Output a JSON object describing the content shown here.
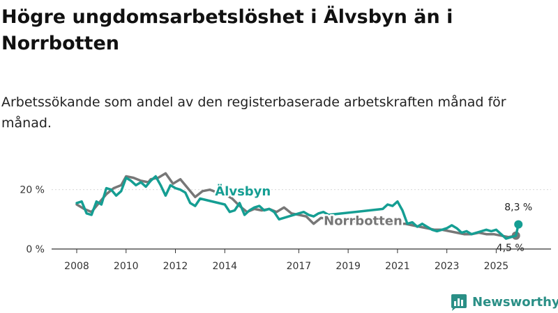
{
  "title": "Högre ungdomsarbetslöshet i Älvsbyn än i Norrbotten",
  "subtitle": "Arbetssökande som andel av den registerbaserade arbetskraften månad för månad.",
  "brand": {
    "name": "Newsworthy"
  },
  "colors": {
    "alvsbyn": "#159e93",
    "norrbotten": "#777777",
    "axis": "#333333"
  },
  "chart_data": {
    "type": "line",
    "unit": "%",
    "ylim": [
      0,
      30
    ],
    "xlim": [
      2008.0,
      2026.6
    ],
    "yticks": [
      {
        "value": 0,
        "label": "0 %"
      },
      {
        "value": 20,
        "label": "20 %"
      }
    ],
    "xticks": [
      {
        "value": 2008,
        "label": "2008"
      },
      {
        "value": 2010,
        "label": "2010"
      },
      {
        "value": 2012,
        "label": "2012"
      },
      {
        "value": 2014,
        "label": "2014"
      },
      {
        "value": 2017,
        "label": "2017"
      },
      {
        "value": 2019,
        "label": "2019"
      },
      {
        "value": 2021,
        "label": "2021"
      },
      {
        "value": 2023,
        "label": "2023"
      },
      {
        "value": 2025,
        "label": "2025"
      }
    ],
    "series": [
      {
        "name": "Norrbotten",
        "label": "Norrbotten",
        "color": "#777777",
        "end_label": "4,5 %",
        "x": [
          2008.0,
          2008.3,
          2008.6,
          2008.9,
          2009.2,
          2009.5,
          2009.8,
          2010.0,
          2010.3,
          2010.6,
          2010.9,
          2011.0,
          2011.3,
          2011.6,
          2011.9,
          2012.2,
          2012.5,
          2012.8,
          2013.1,
          2013.4,
          2013.7,
          2014.0,
          2014.3,
          2014.6,
          2014.9,
          2015.2,
          2015.5,
          2015.8,
          2016.1,
          2016.4,
          2016.7,
          2017.0,
          2017.3,
          2017.6,
          2017.9,
          2018.2,
          2019.8,
          2020.1,
          2020.4,
          2020.7,
          2021.0,
          2021.3,
          2021.6,
          2021.9,
          2022.2,
          2022.5,
          2022.8,
          2023.1,
          2023.4,
          2023.7,
          2024.0,
          2024.3,
          2024.6,
          2024.9,
          2025.2,
          2025.5,
          2025.8
        ],
        "values": [
          15.0,
          13.5,
          12.5,
          15.5,
          18.5,
          20.5,
          21.5,
          24.5,
          24.0,
          23.0,
          22.5,
          23.5,
          24.0,
          25.5,
          22.0,
          23.5,
          20.5,
          17.5,
          19.5,
          20.0,
          19.0,
          18.5,
          17.0,
          14.5,
          12.5,
          13.5,
          13.0,
          13.5,
          12.5,
          14.0,
          12.0,
          11.5,
          11.0,
          8.5,
          10.5,
          10.0,
          9.0,
          9.5,
          9.0,
          9.5,
          8.5,
          8.5,
          8.0,
          7.5,
          7.0,
          6.5,
          6.5,
          6.0,
          5.5,
          5.0,
          5.0,
          5.5,
          5.0,
          5.0,
          4.5,
          4.0,
          4.5
        ]
      },
      {
        "name": "Älvsbyn",
        "label": "Älvsbyn",
        "color": "#159e93",
        "end_label": "8,3 %",
        "x": [
          2008.0,
          2008.2,
          2008.4,
          2008.6,
          2008.8,
          2009.0,
          2009.2,
          2009.4,
          2009.6,
          2009.8,
          2010.0,
          2010.2,
          2010.4,
          2010.6,
          2010.8,
          2011.0,
          2011.2,
          2011.4,
          2011.6,
          2011.8,
          2012.0,
          2012.2,
          2012.4,
          2012.6,
          2012.8,
          2013.0,
          2014.0,
          2014.2,
          2014.4,
          2014.6,
          2014.8,
          2015.0,
          2015.2,
          2015.4,
          2015.6,
          2015.8,
          2016.0,
          2016.2,
          2016.4,
          2016.6,
          2016.8,
          2017.0,
          2017.2,
          2017.4,
          2017.6,
          2017.8,
          2018.0,
          2018.2,
          2020.4,
          2020.6,
          2020.8,
          2021.0,
          2021.2,
          2021.4,
          2021.6,
          2021.8,
          2022.0,
          2022.2,
          2022.4,
          2022.6,
          2022.8,
          2023.0,
          2023.2,
          2023.4,
          2023.6,
          2023.8,
          2024.0,
          2024.2,
          2024.4,
          2024.6,
          2024.8,
          2025.0,
          2025.2,
          2025.4,
          2025.6,
          2025.8,
          2025.9
        ],
        "values": [
          15.5,
          16.0,
          12.0,
          11.5,
          16.0,
          15.0,
          20.5,
          20.0,
          18.0,
          19.5,
          24.0,
          23.0,
          21.5,
          22.5,
          21.0,
          23.0,
          24.5,
          21.5,
          18.0,
          21.5,
          20.5,
          20.0,
          19.0,
          15.5,
          14.5,
          17.0,
          15.0,
          12.5,
          13.0,
          15.5,
          11.5,
          13.0,
          14.0,
          14.5,
          13.0,
          13.5,
          12.5,
          10.0,
          10.5,
          11.0,
          11.5,
          12.0,
          12.5,
          11.5,
          11.0,
          12.0,
          12.5,
          11.5,
          13.5,
          15.0,
          14.5,
          16.0,
          13.0,
          8.5,
          9.0,
          7.5,
          8.5,
          7.5,
          6.5,
          6.0,
          6.5,
          7.0,
          8.0,
          7.0,
          5.5,
          6.0,
          5.0,
          5.5,
          6.0,
          6.5,
          6.0,
          6.5,
          5.0,
          3.5,
          4.0,
          4.5,
          8.3
        ]
      }
    ]
  }
}
